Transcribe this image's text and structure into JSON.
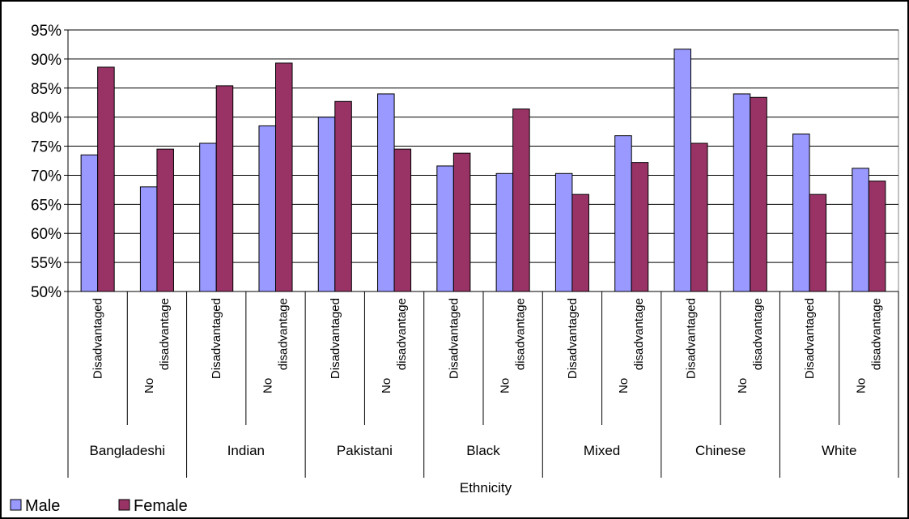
{
  "chart_data": {
    "type": "bar",
    "title": "",
    "xlabel": "Ethnicity",
    "ylabel": "",
    "ylim": [
      0.5,
      0.95
    ],
    "y_ticks": [
      "50%",
      "55%",
      "60%",
      "65%",
      "70%",
      "75%",
      "80%",
      "85%",
      "90%",
      "95%"
    ],
    "grid": true,
    "legend_position": "bottom-left",
    "groups": [
      "Bangladeshi",
      "Indian",
      "Pakistani",
      "Black",
      "Mixed",
      "Chinese",
      "White"
    ],
    "subcategories": [
      "Disadvantaged",
      "No disadvantage"
    ],
    "categories": [
      "Bangladeshi - Disadvantaged",
      "Bangladeshi - No disadvantage",
      "Indian - Disadvantaged",
      "Indian - No disadvantage",
      "Pakistani - Disadvantaged",
      "Pakistani - No disadvantage",
      "Black - Disadvantaged",
      "Black - No disadvantage",
      "Mixed - Disadvantaged",
      "Mixed - No disadvantage",
      "Chinese - Disadvantaged",
      "Chinese - No disadvantage",
      "White - Disadvantaged",
      "White - No disadvantage"
    ],
    "series": [
      {
        "name": "Male",
        "color": "#9999FF",
        "values": [
          0.735,
          0.68,
          0.755,
          0.785,
          0.8,
          0.84,
          0.716,
          0.703,
          0.703,
          0.768,
          0.917,
          0.84,
          0.771,
          0.712
        ]
      },
      {
        "name": "Female",
        "color": "#993366",
        "values": [
          0.886,
          0.745,
          0.854,
          0.893,
          0.827,
          0.745,
          0.738,
          0.814,
          0.667,
          0.722,
          0.755,
          0.834,
          0.667,
          0.69
        ]
      }
    ]
  }
}
